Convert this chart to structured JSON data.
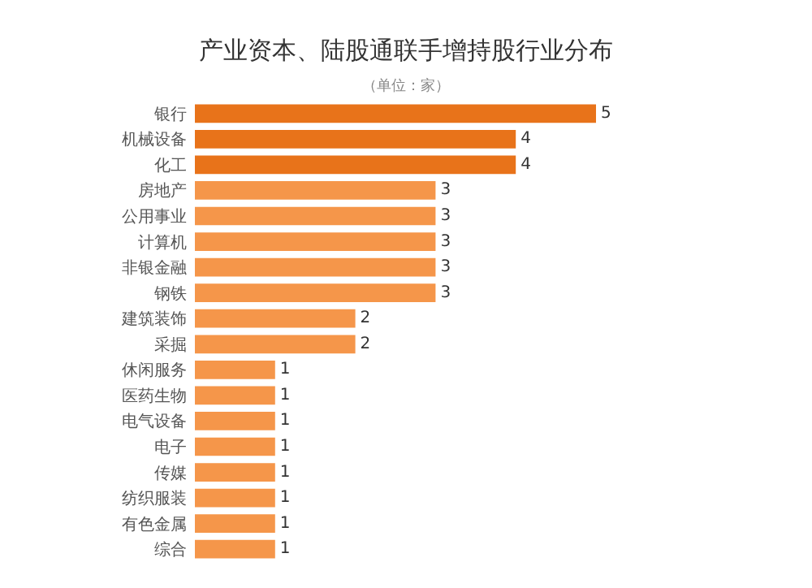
{
  "chart_data": {
    "type": "bar",
    "orientation": "horizontal",
    "title": "产业资本、陆股通联手增持股行业分布",
    "subtitle": "（单位：家）",
    "categories": [
      "银行",
      "机械设备",
      "化工",
      "房地产",
      "公用事业",
      "计算机",
      "非银金融",
      "钢铁",
      "建筑装饰",
      "采掘",
      "休闲服务",
      "医药生物",
      "电气设备",
      "电子",
      "传媒",
      "纺织服装",
      "有色金属",
      "综合"
    ],
    "values": [
      5,
      4,
      4,
      3,
      3,
      3,
      3,
      3,
      2,
      2,
      1,
      1,
      1,
      1,
      1,
      1,
      1,
      1
    ],
    "colors": [
      "#e8731a",
      "#e8731a",
      "#e8731a",
      "#f5964a",
      "#f5964a",
      "#f5964a",
      "#f5964a",
      "#f5964a",
      "#f5964a",
      "#f5964a",
      "#f5964a",
      "#f5964a",
      "#f5964a",
      "#f5964a",
      "#f5964a",
      "#f5964a",
      "#f5964a",
      "#f5964a"
    ],
    "data_labels": true
  }
}
